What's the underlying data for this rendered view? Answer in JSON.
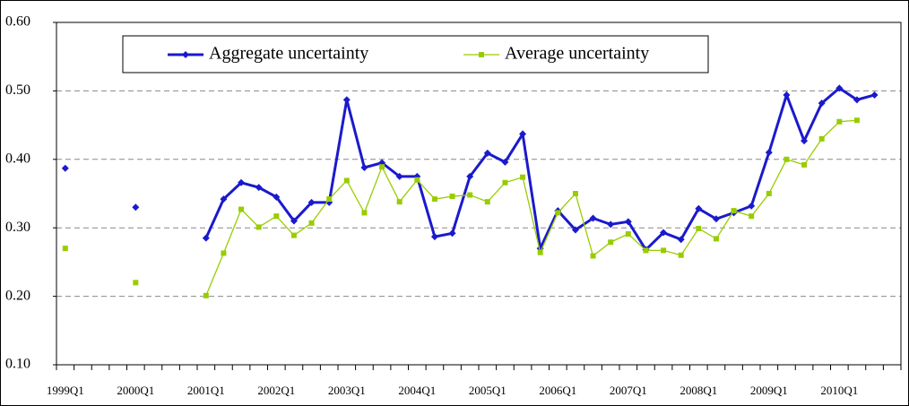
{
  "chart_data": {
    "type": "line",
    "categories": [
      "1999Q1",
      null,
      null,
      null,
      "2000Q1",
      null,
      null,
      null,
      "2001Q1",
      null,
      null,
      null,
      "2002Q1",
      null,
      null,
      null,
      "2003Q1",
      null,
      null,
      null,
      "2004Q1",
      null,
      null,
      null,
      "2005Q1",
      null,
      null,
      null,
      "2006Q1",
      null,
      null,
      null,
      "2007Q1",
      null,
      null,
      null,
      "2008Q1",
      null,
      null,
      null,
      "2009Q1",
      null,
      null,
      null,
      "2010Q1",
      null,
      null,
      null
    ],
    "series": [
      {
        "name": "Aggregate uncertainty",
        "color": "#1a1acc",
        "marker": "diamond",
        "values": [
          0.387,
          null,
          null,
          null,
          0.33,
          null,
          null,
          null,
          0.285,
          0.342,
          0.366,
          0.359,
          0.345,
          0.31,
          0.337,
          0.337,
          0.487,
          0.388,
          0.395,
          0.375,
          0.375,
          0.287,
          0.292,
          0.375,
          0.409,
          0.396,
          0.437,
          0.27,
          0.325,
          0.297,
          0.314,
          0.305,
          0.309,
          0.268,
          0.293,
          0.283,
          0.328,
          0.313,
          0.322,
          0.332,
          0.41,
          0.494,
          0.427,
          0.482,
          0.504,
          0.487,
          0.494,
          null
        ]
      },
      {
        "name": "Average uncertainty",
        "color": "#99cc00",
        "marker": "square",
        "values": [
          0.27,
          null,
          null,
          null,
          0.22,
          null,
          null,
          null,
          0.201,
          0.263,
          0.327,
          0.301,
          0.317,
          0.289,
          0.307,
          0.342,
          0.369,
          0.322,
          0.389,
          0.338,
          0.37,
          0.342,
          0.346,
          0.348,
          0.338,
          0.366,
          0.374,
          0.264,
          0.322,
          0.35,
          0.259,
          0.279,
          0.291,
          0.267,
          0.267,
          0.26,
          0.299,
          0.284,
          0.325,
          0.317,
          0.35,
          0.4,
          0.392,
          0.43,
          0.455,
          0.457,
          null,
          null
        ]
      }
    ],
    "ylim": [
      0.1,
      0.6
    ],
    "yticks": [
      {
        "value": 0.1,
        "label": "0.10"
      },
      {
        "value": 0.2,
        "label": "0.20"
      },
      {
        "value": 0.3,
        "label": "0.30"
      },
      {
        "value": 0.4,
        "label": "0.40"
      },
      {
        "value": 0.5,
        "label": "0.50"
      },
      {
        "value": 0.6,
        "label": "0.60"
      }
    ],
    "grid": true,
    "legend": "top"
  }
}
